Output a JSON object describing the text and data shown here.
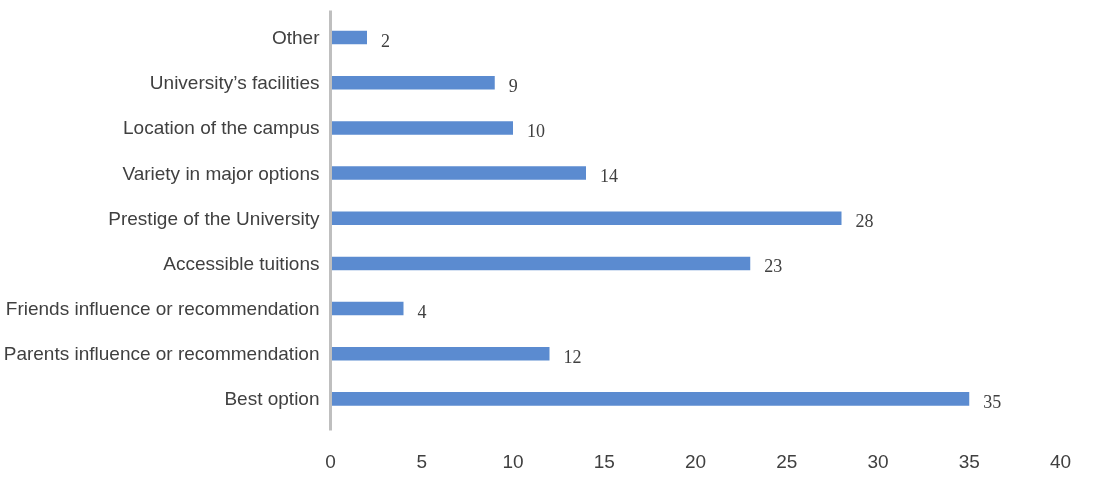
{
  "chart_data": {
    "type": "bar",
    "orientation": "horizontal",
    "categories": [
      "Other",
      "University’s facilities",
      "Location of the campus",
      "Variety in major options",
      "Prestige of the University",
      "Accessible tuitions",
      "Friends influence or recommendation",
      "Parents influence or recommendation",
      "Best option"
    ],
    "values": [
      2,
      9,
      10,
      14,
      28,
      23,
      4,
      12,
      35
    ],
    "color": "#5b8bd0",
    "xlim": [
      0,
      40
    ],
    "xticks": [
      0,
      5,
      10,
      15,
      20,
      25,
      30,
      35,
      40
    ],
    "data_labels": true,
    "grid": false
  }
}
